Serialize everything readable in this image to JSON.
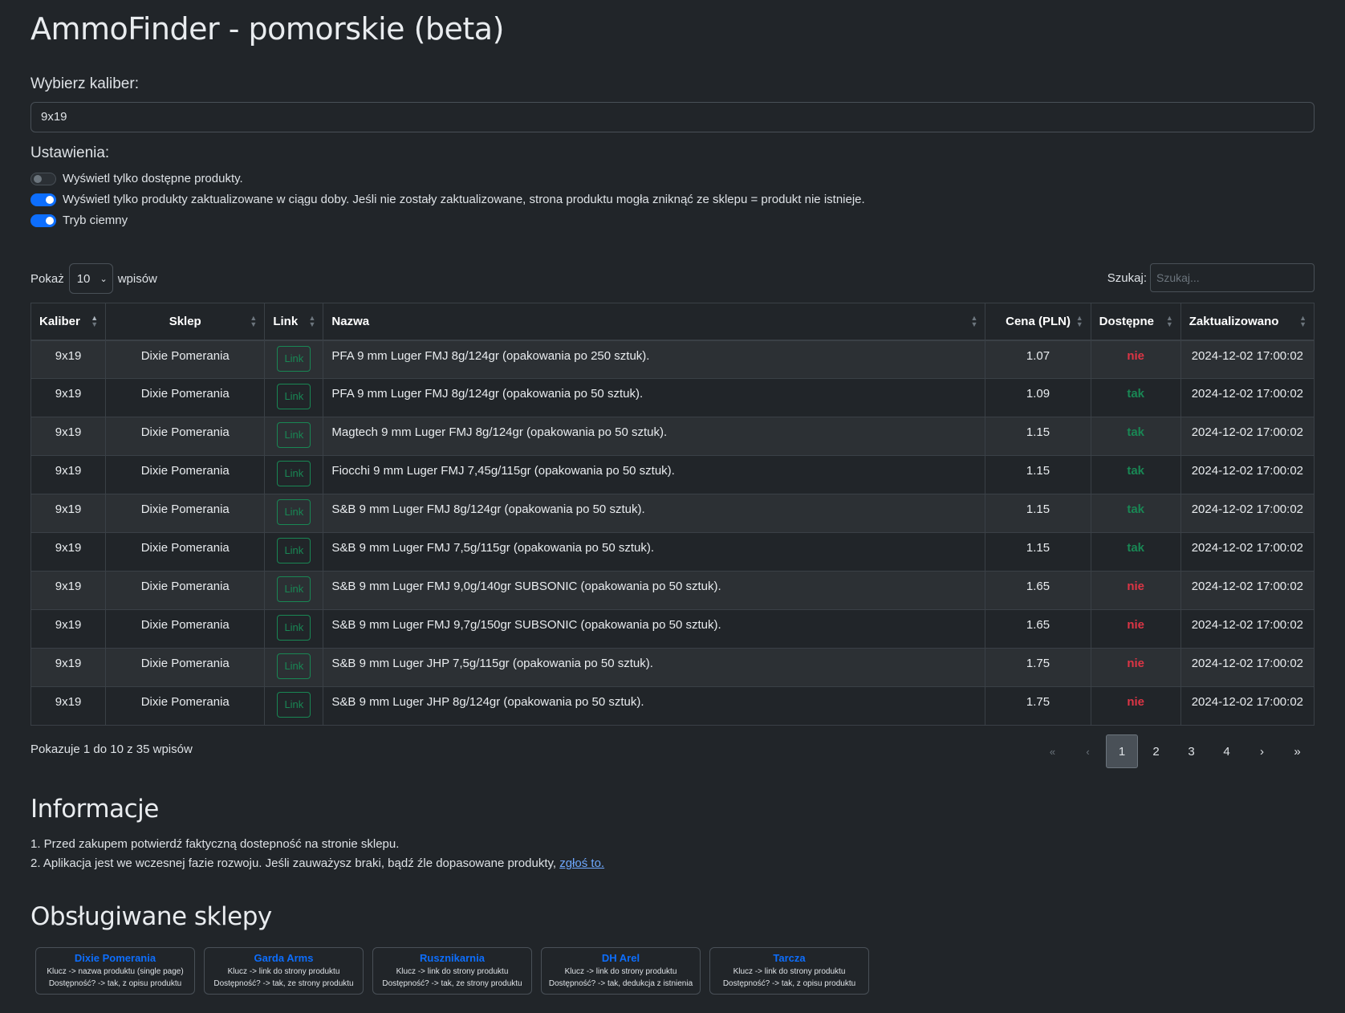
{
  "page": {
    "title": "AmmoFinder - pomorskie (beta)"
  },
  "caliber": {
    "label": "Wybierz kaliber:",
    "value": "9x19"
  },
  "settings": {
    "label": "Ustawienia:",
    "toggles": [
      {
        "label": "Wyświetl tylko dostępne produkty.",
        "checked": false
      },
      {
        "label": "Wyświetl tylko produkty zaktualizowane w ciągu doby. Jeśli nie zostały zaktualizowane, strona produktu mogła zniknąć ze sklepu = produkt nie istnieje.",
        "checked": true
      },
      {
        "label": "Tryb ciemny",
        "checked": true
      }
    ]
  },
  "table_controls": {
    "show_label": "Pokaż",
    "show_value": "10",
    "entries_label": "wpisów",
    "search_label": "Szukaj:",
    "search_placeholder": "Szukaj..."
  },
  "table": {
    "columns": [
      "Kaliber",
      "Sklep",
      "Link",
      "Nazwa",
      "Cena (PLN)",
      "Dostępne",
      "Zaktualizowano"
    ],
    "rows": [
      {
        "kaliber": "9x19",
        "sklep": "Dixie Pomerania",
        "link": "Link",
        "nazwa": "PFA 9 mm Luger FMJ 8g/124gr (opakowania po 250 sztuk).",
        "cena": "1.07",
        "dostepne": "nie",
        "zaktualizowano": "2024-12-02 17:00:02"
      },
      {
        "kaliber": "9x19",
        "sklep": "Dixie Pomerania",
        "link": "Link",
        "nazwa": "PFA 9 mm Luger FMJ 8g/124gr (opakowania po 50 sztuk).",
        "cena": "1.09",
        "dostepne": "tak",
        "zaktualizowano": "2024-12-02 17:00:02"
      },
      {
        "kaliber": "9x19",
        "sklep": "Dixie Pomerania",
        "link": "Link",
        "nazwa": "Magtech 9 mm Luger FMJ 8g/124gr (opakowania po 50 sztuk).",
        "cena": "1.15",
        "dostepne": "tak",
        "zaktualizowano": "2024-12-02 17:00:02"
      },
      {
        "kaliber": "9x19",
        "sklep": "Dixie Pomerania",
        "link": "Link",
        "nazwa": "Fiocchi 9 mm Luger FMJ 7,45g/115gr (opakowania po 50 sztuk).",
        "cena": "1.15",
        "dostepne": "tak",
        "zaktualizowano": "2024-12-02 17:00:02"
      },
      {
        "kaliber": "9x19",
        "sklep": "Dixie Pomerania",
        "link": "Link",
        "nazwa": "S&B 9 mm Luger FMJ 8g/124gr (opakowania po 50 sztuk).",
        "cena": "1.15",
        "dostepne": "tak",
        "zaktualizowano": "2024-12-02 17:00:02"
      },
      {
        "kaliber": "9x19",
        "sklep": "Dixie Pomerania",
        "link": "Link",
        "nazwa": "S&B 9 mm Luger FMJ 7,5g/115gr (opakowania po 50 sztuk).",
        "cena": "1.15",
        "dostepne": "tak",
        "zaktualizowano": "2024-12-02 17:00:02"
      },
      {
        "kaliber": "9x19",
        "sklep": "Dixie Pomerania",
        "link": "Link",
        "nazwa": "S&B 9 mm Luger FMJ 9,0g/140gr SUBSONIC (opakowania po 50 sztuk).",
        "cena": "1.65",
        "dostepne": "nie",
        "zaktualizowano": "2024-12-02 17:00:02"
      },
      {
        "kaliber": "9x19",
        "sklep": "Dixie Pomerania",
        "link": "Link",
        "nazwa": "S&B 9 mm Luger FMJ 9,7g/150gr SUBSONIC (opakowania po 50 sztuk).",
        "cena": "1.65",
        "dostepne": "nie",
        "zaktualizowano": "2024-12-02 17:00:02"
      },
      {
        "kaliber": "9x19",
        "sklep": "Dixie Pomerania",
        "link": "Link",
        "nazwa": "S&B 9 mm Luger JHP 7,5g/115gr (opakowania po 50 sztuk).",
        "cena": "1.75",
        "dostepne": "nie",
        "zaktualizowano": "2024-12-02 17:00:02"
      },
      {
        "kaliber": "9x19",
        "sklep": "Dixie Pomerania",
        "link": "Link",
        "nazwa": "S&B 9 mm Luger JHP 8g/124gr (opakowania po 50 sztuk).",
        "cena": "1.75",
        "dostepne": "nie",
        "zaktualizowano": "2024-12-02 17:00:02"
      }
    ]
  },
  "table_footer": {
    "info": "Pokazuje 1 do 10 z 35 wpisów",
    "pagination": {
      "first": "«",
      "prev": "‹",
      "pages": [
        "1",
        "2",
        "3",
        "4"
      ],
      "active_page": "1",
      "next": "›",
      "last": "»"
    }
  },
  "info_section": {
    "heading": "Informacje",
    "line1": "1. Przed zakupem potwierdź faktyczną dostepność na stronie sklepu.",
    "line2_prefix": "2. Aplikacja jest we wczesnej fazie rozwoju. Jeśli zauważysz braki, bądź źle dopasowane produkty, ",
    "line2_link": "zgłoś to."
  },
  "shops_section": {
    "heading": "Obsługiwane sklepy",
    "shops": [
      {
        "name": "Dixie Pomerania",
        "key": "Klucz -> nazwa produktu (single page)",
        "availability": "Dostępność? -> tak, z opisu produktu"
      },
      {
        "name": "Garda Arms",
        "key": "Klucz -> link do strony produktu",
        "availability": "Dostępność? -> tak, ze strony produktu"
      },
      {
        "name": "Rusznikarnia",
        "key": "Klucz -> link do strony produktu",
        "availability": "Dostępność? -> tak, ze strony produktu"
      },
      {
        "name": "DH Arel",
        "key": "Klucz -> link do strony produktu",
        "availability": "Dostępność? -> tak, dedukcja z istnienia"
      },
      {
        "name": "Tarcza",
        "key": "Klucz -> link do strony produktu",
        "availability": "Dostępność? -> tak, z opisu produktu"
      }
    ]
  },
  "colors": {
    "background": "#212529",
    "accent": "#0d6efd",
    "available": "#198754",
    "unavailable": "#dc3545",
    "link": "#6ea8fe"
  }
}
